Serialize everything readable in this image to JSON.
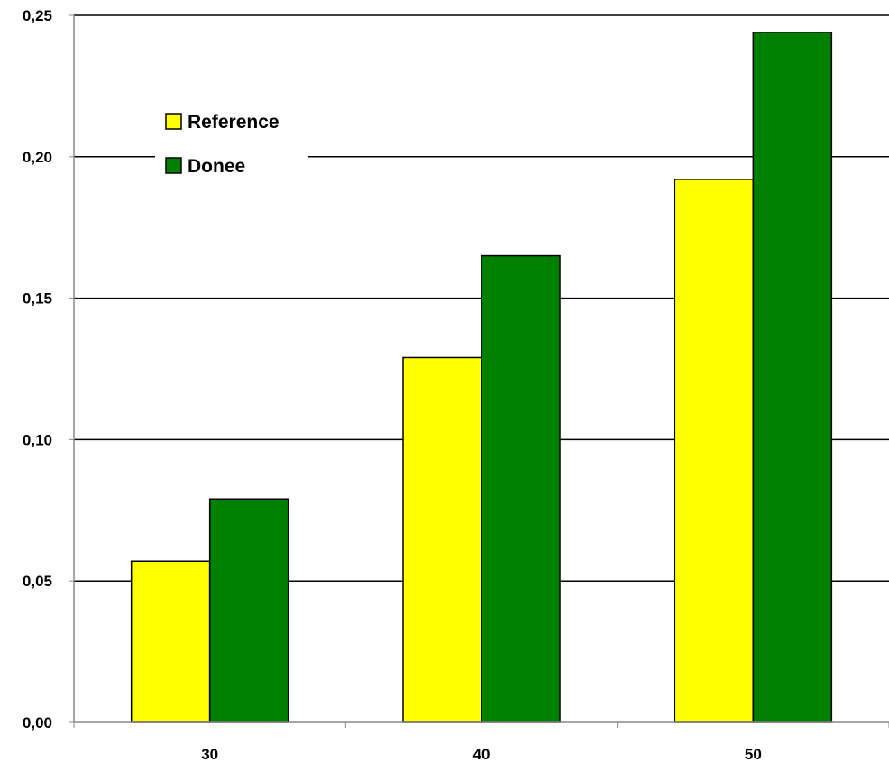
{
  "chart_data": {
    "type": "bar",
    "title": "",
    "xlabel": "",
    "ylabel": "",
    "categories": [
      "30",
      "40",
      "50"
    ],
    "series": [
      {
        "name": "Reference",
        "values": [
          0.057,
          0.129,
          0.192
        ],
        "color": "#ffff00"
      },
      {
        "name": "Donee",
        "values": [
          0.079,
          0.165,
          0.244
        ],
        "color": "#008000"
      }
    ],
    "ylim": [
      0,
      0.25
    ],
    "yticks": [
      "0,00",
      "0,05",
      "0,10",
      "0,15",
      "0,20",
      "0,25"
    ],
    "ytick_values": [
      0,
      0.05,
      0.1,
      0.15,
      0.2,
      0.25
    ],
    "grid": "horizontal",
    "legend_position": "top-left"
  }
}
